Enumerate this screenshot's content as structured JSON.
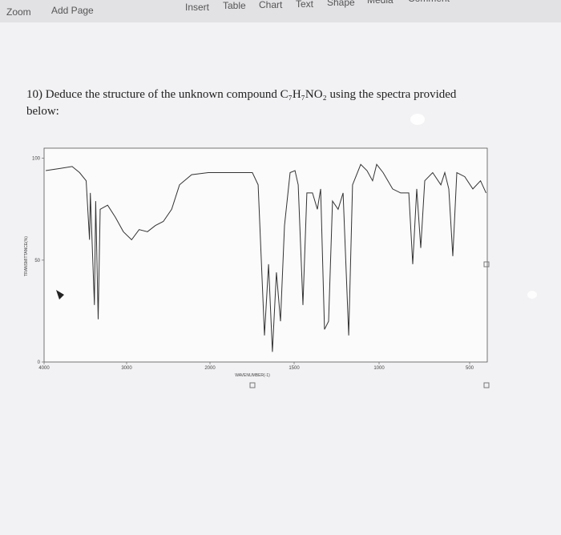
{
  "toolbar": {
    "left": [
      "Zoom",
      "Add Page"
    ],
    "items": [
      "Insert",
      "Table",
      "Chart",
      "Text",
      "Shape",
      "Media",
      "Comment"
    ]
  },
  "question": {
    "line1": "10) Deduce the structure of the unknown compound C₇H₇NO₂ using the spectra provided",
    "line2": "below:"
  },
  "chart_data": {
    "type": "line",
    "xlabel": "WAVENUMBER(-1)",
    "ylabel": "TRANSMITTANCE(%)",
    "color": "#333333",
    "xlim": [
      4000,
      400
    ],
    "ylim": [
      0,
      105
    ],
    "xticks": [
      4000,
      3000,
      2000,
      1500,
      1000,
      500
    ],
    "yticks": [
      0,
      50,
      100
    ],
    "x": [
      3980,
      3810,
      3660,
      3570,
      3490,
      3450,
      3440,
      3390,
      3375,
      3345,
      3320,
      3230,
      3135,
      3040,
      2940,
      2850,
      2750,
      2655,
      2560,
      2460,
      2365,
      2220,
      2020,
      1867,
      1748,
      1714,
      1676,
      1652,
      1629,
      1605,
      1581,
      1557,
      1524,
      1495,
      1476,
      1448,
      1425,
      1392,
      1363,
      1344,
      1321,
      1297,
      1274,
      1241,
      1212,
      1179,
      1156,
      1108,
      1071,
      1038,
      1014,
      978,
      925,
      881,
      836,
      814,
      792,
      770,
      748,
      704,
      659,
      637,
      615,
      593,
      571,
      527,
      482,
      438,
      407
    ],
    "values": [
      94,
      95,
      96,
      93,
      89,
      60,
      83,
      28,
      79,
      21,
      75,
      77,
      71,
      64,
      60,
      65,
      64,
      67,
      69,
      75,
      87,
      92,
      93,
      93,
      93,
      87,
      13,
      48,
      5,
      44,
      20,
      67,
      93,
      94,
      87,
      28,
      83,
      83,
      75,
      85,
      16,
      20,
      79,
      75,
      83,
      13,
      87,
      97,
      94,
      89,
      97,
      93,
      85,
      83,
      83,
      48,
      85,
      56,
      89,
      93,
      87,
      93,
      85,
      52,
      93,
      91,
      85,
      89,
      83
    ]
  }
}
